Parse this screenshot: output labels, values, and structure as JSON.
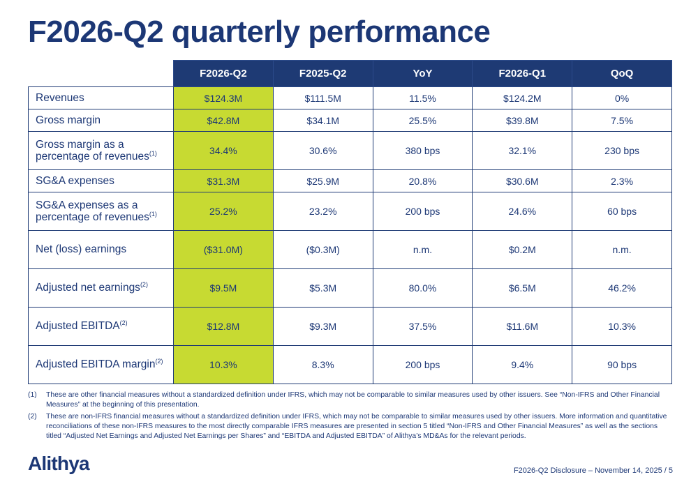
{
  "slide": {
    "title": "F2026-Q2 quarterly performance",
    "logo": "Alithya",
    "footer_right": "F2026-Q2 Disclosure – November 14, 2025 / 5"
  },
  "colors": {
    "navy": "#1e3a74",
    "lime_highlight": "#c7da32",
    "background": "#ffffff"
  },
  "table": {
    "columns": [
      "F2026-Q2",
      "F2025-Q2",
      "YoY",
      "F2026-Q1",
      "QoQ"
    ],
    "highlight_column": "F2026-Q2",
    "rows": [
      {
        "label": "Revenues",
        "sup": "",
        "values": [
          "$124.3M",
          "$111.5M",
          "11.5%",
          "$124.2M",
          "0%"
        ]
      },
      {
        "label": "Gross margin",
        "sup": "",
        "values": [
          "$42.8M",
          "$34.1M",
          "25.5%",
          "$39.8M",
          "7.5%"
        ]
      },
      {
        "label": "Gross margin as a percentage of revenues",
        "sup": "(1)",
        "values": [
          "34.4%",
          "30.6%",
          "380 bps",
          "32.1%",
          "230 bps"
        ]
      },
      {
        "label": "SG&A expenses",
        "sup": "",
        "values": [
          "$31.3M",
          "$25.9M",
          "20.8%",
          "$30.6M",
          "2.3%"
        ]
      },
      {
        "label": "SG&A expenses as a percentage of revenues",
        "sup": "(1)",
        "values": [
          "25.2%",
          "23.2%",
          "200 bps",
          "24.6%",
          "60 bps"
        ]
      },
      {
        "label": "Net (loss) earnings",
        "sup": "",
        "values": [
          "($31.0M)",
          "($0.3M)",
          "n.m.",
          "$0.2M",
          "n.m."
        ]
      },
      {
        "label": "Adjusted net earnings",
        "sup": "(2)",
        "values": [
          "$9.5M",
          "$5.3M",
          "80.0%",
          "$6.5M",
          "46.2%"
        ]
      },
      {
        "label": "Adjusted EBITDA",
        "sup": "(2)",
        "values": [
          "$12.8M",
          "$9.3M",
          "37.5%",
          "$11.6M",
          "10.3%"
        ]
      },
      {
        "label": "Adjusted EBITDA margin",
        "sup": "(2)",
        "values": [
          "10.3%",
          "8.3%",
          "200 bps",
          "9.4%",
          "90 bps"
        ]
      }
    ]
  },
  "footnotes": [
    {
      "marker": "(1)",
      "text": "These are other financial measures without a standardized definition under IFRS, which may not be comparable to similar measures used by other issuers. See “Non-IFRS and Other Financial Measures” at the beginning of this presentation."
    },
    {
      "marker": "(2)",
      "text": "These are non-IFRS financial measures without a standardized definition under IFRS, which may not be comparable to similar measures used by other issuers. More information and quantitative reconciliations of these non-IFRS measures to the most directly comparable IFRS measures are presented in section 5 titled  “Non-IFRS and Other Financial Measures” as well as the sections titled “Adjusted Net Earnings and Adjusted Net Earnings per Shares” and “EBITDA and Adjusted EBITDA” of Alithya’s MD&As for the relevant periods."
    }
  ]
}
